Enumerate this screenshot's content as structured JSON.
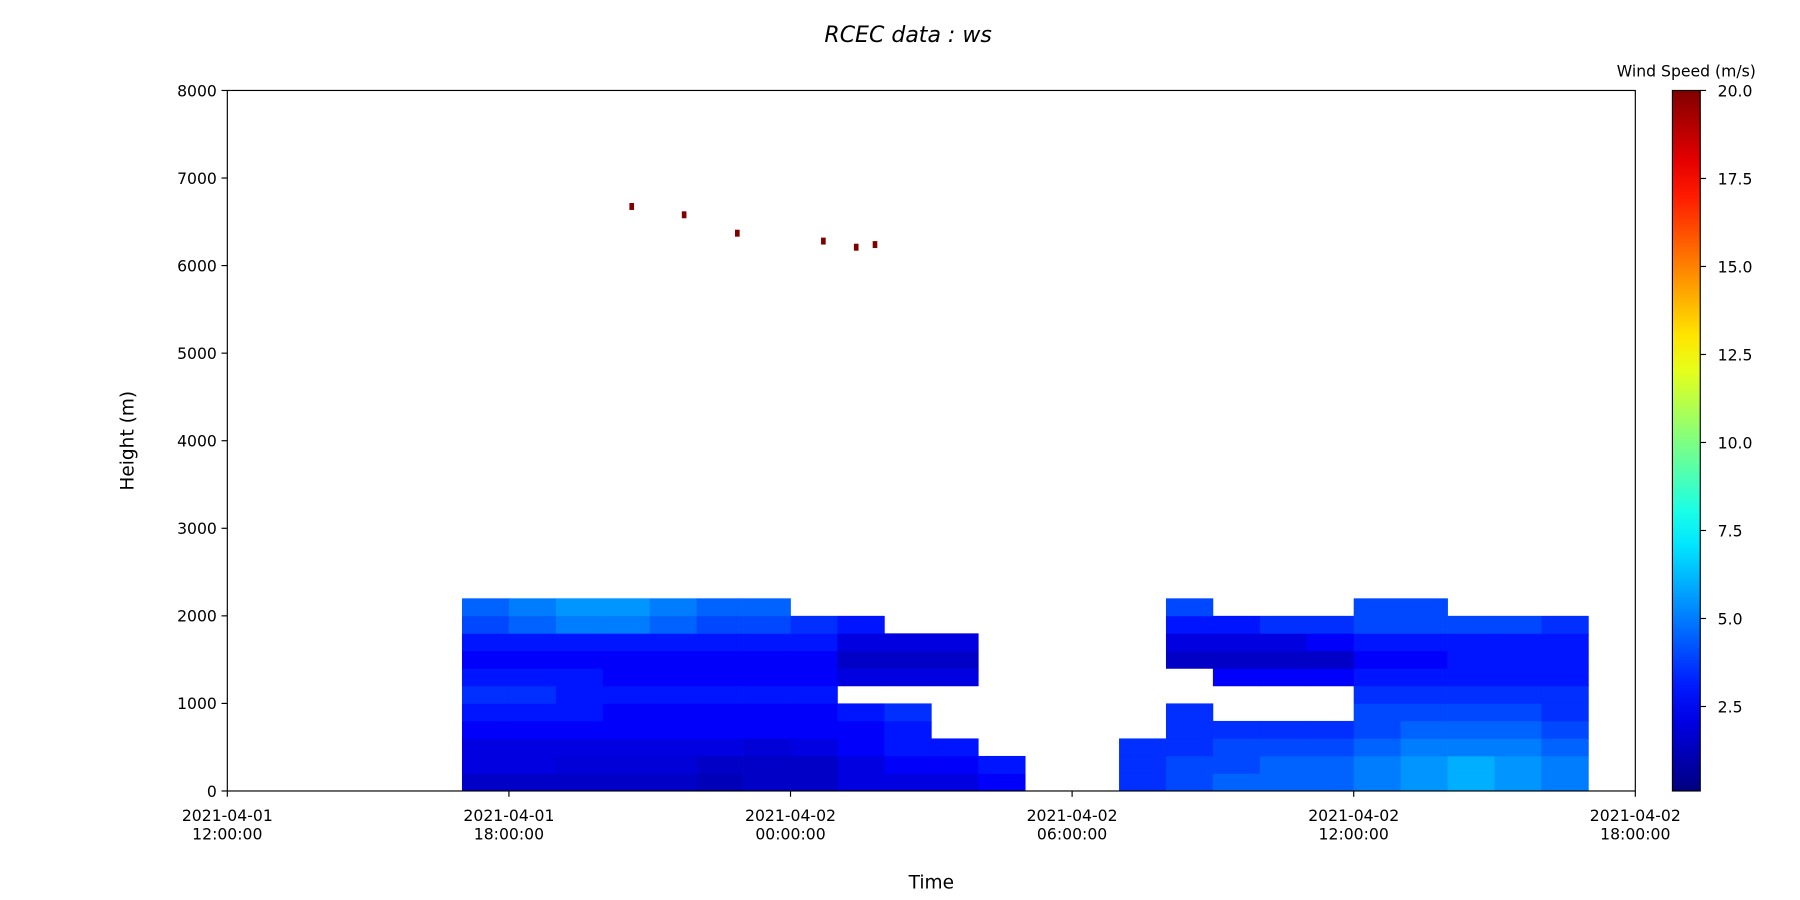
{
  "chart_data": {
    "type": "heatmap",
    "title": "RCEC data : ws",
    "x_label": "Time",
    "y_label": "Height (m)",
    "colorbar_label": "Wind Speed (m/s)",
    "colormap": "jet",
    "xlim": [
      "2021-04-01 12:00:00",
      "2021-04-02 18:00:00"
    ],
    "xticks": [
      {
        "value": "2021-04-01 12:00:00",
        "label": "2021-04-01\n12:00:00"
      },
      {
        "value": "2021-04-01 18:00:00",
        "label": "2021-04-01\n18:00:00"
      },
      {
        "value": "2021-04-02 00:00:00",
        "label": "2021-04-02\n00:00:00"
      },
      {
        "value": "2021-04-02 06:00:00",
        "label": "2021-04-02\n06:00:00"
      },
      {
        "value": "2021-04-02 12:00:00",
        "label": "2021-04-02\n12:00:00"
      },
      {
        "value": "2021-04-02 18:00:00",
        "label": "2021-04-02\n18:00:00"
      }
    ],
    "ylim": [
      0,
      8000
    ],
    "yticks": [
      0,
      1000,
      2000,
      3000,
      4000,
      5000,
      6000,
      7000,
      8000
    ],
    "clim": [
      0.1,
      20
    ],
    "cticks": [
      2.5,
      {
        "value": 5,
        "label": "5.0"
      },
      7.5,
      {
        "value": 10,
        "label": "10.0"
      },
      12.5,
      {
        "value": 15,
        "label": "15.0"
      },
      17.5,
      {
        "value": 20,
        "label": "20.0"
      }
    ],
    "x": [
      "2021-04-01 17:00:00",
      "2021-04-01 18:00:00",
      "2021-04-01 19:00:00",
      "2021-04-01 20:00:00",
      "2021-04-01 21:00:00",
      "2021-04-01 22:00:00",
      "2021-04-01 23:00:00",
      "2021-04-02 00:00:00",
      "2021-04-02 01:00:00",
      "2021-04-02 02:00:00",
      "2021-04-02 03:00:00",
      "2021-04-02 04:00:00",
      "2021-04-02 05:00:00",
      "2021-04-02 06:00:00",
      "2021-04-02 07:00:00",
      "2021-04-02 08:00:00",
      "2021-04-02 09:00:00",
      "2021-04-02 10:00:00",
      "2021-04-02 11:00:00",
      "2021-04-02 12:00:00",
      "2021-04-02 13:00:00",
      "2021-04-02 14:00:00",
      "2021-04-02 15:00:00",
      "2021-04-02 16:00:00",
      "2021-04-02 17:00:00"
    ],
    "y": [
      0,
      200,
      400,
      600,
      800,
      1000,
      1200,
      1400,
      1600,
      1800,
      2000,
      2200
    ],
    "z": [
      [
        1.5,
        1.5,
        1.5,
        1.5,
        1.5,
        1.2,
        1.5,
        1.5,
        2,
        2,
        2,
        2.5,
        null,
        null,
        3.5,
        4,
        4.5,
        4.5,
        4.5,
        5,
        5.5,
        6,
        5.5,
        5
      ],
      [
        2,
        2,
        1.8,
        1.8,
        1.8,
        1.5,
        1.5,
        1.5,
        2,
        2.5,
        2.5,
        3,
        null,
        null,
        3.5,
        4,
        4,
        4.5,
        4.5,
        5,
        5.5,
        6,
        5.5,
        5
      ],
      [
        2,
        2,
        2,
        2,
        2,
        2,
        1.8,
        2,
        2.5,
        3,
        3,
        null,
        null,
        null,
        3.5,
        3.5,
        4,
        4,
        4,
        4.5,
        5,
        5,
        5,
        4.5
      ],
      [
        2.5,
        2.5,
        2.5,
        2.5,
        2.5,
        2.5,
        2.5,
        2.5,
        2.5,
        3,
        null,
        null,
        null,
        null,
        null,
        3.5,
        3.5,
        3.5,
        3.5,
        4,
        4.5,
        4.5,
        4.5,
        4
      ],
      [
        3,
        3,
        3,
        2.5,
        2.5,
        2.5,
        2.5,
        2.5,
        3,
        3.5,
        null,
        null,
        null,
        null,
        null,
        3.5,
        null,
        null,
        null,
        4,
        4,
        4,
        4,
        3.5
      ],
      [
        3.5,
        3.5,
        3,
        3,
        3,
        3,
        3,
        3,
        null,
        null,
        null,
        null,
        null,
        null,
        null,
        null,
        null,
        null,
        null,
        3.5,
        3.5,
        3.5,
        3.5,
        3.5
      ],
      [
        3,
        3,
        3,
        2.5,
        2.5,
        2.5,
        2.5,
        2.5,
        2,
        2,
        2,
        null,
        null,
        null,
        null,
        null,
        2.5,
        2.5,
        2.5,
        3,
        3,
        3,
        3,
        3
      ],
      [
        2.5,
        2.5,
        2.5,
        2.5,
        2.5,
        2.5,
        2.5,
        2.5,
        1.5,
        1.5,
        1.5,
        null,
        null,
        null,
        null,
        1.5,
        1.5,
        1.5,
        1.5,
        2.5,
        2.5,
        3,
        3,
        3
      ],
      [
        3,
        3,
        3,
        3,
        3,
        3,
        3,
        3,
        2,
        2,
        2,
        null,
        null,
        null,
        null,
        2,
        2,
        2,
        2.5,
        3,
        3,
        3,
        3,
        3
      ],
      [
        4,
        4.5,
        5,
        5,
        4.5,
        4,
        4,
        3.5,
        3,
        null,
        null,
        null,
        null,
        null,
        null,
        3,
        3,
        3.5,
        3.5,
        4,
        4,
        4,
        4,
        3.5
      ],
      [
        4.5,
        5,
        5.5,
        5.5,
        5,
        4.5,
        4.5,
        null,
        null,
        null,
        null,
        null,
        null,
        null,
        null,
        4,
        null,
        null,
        null,
        4,
        4,
        null,
        null,
        null
      ]
    ],
    "points": {
      "x": [
        "2021-04-01 20:37:00",
        "2021-04-01 21:44:00",
        "2021-04-01 22:52:00",
        "2021-04-02 00:42:00",
        "2021-04-02 01:24:00",
        "2021-04-02 01:48:00"
      ],
      "y": [
        6675,
        6580,
        6370,
        6280,
        6210,
        6240
      ],
      "values": [
        20,
        20,
        20,
        20,
        20,
        20
      ]
    }
  }
}
